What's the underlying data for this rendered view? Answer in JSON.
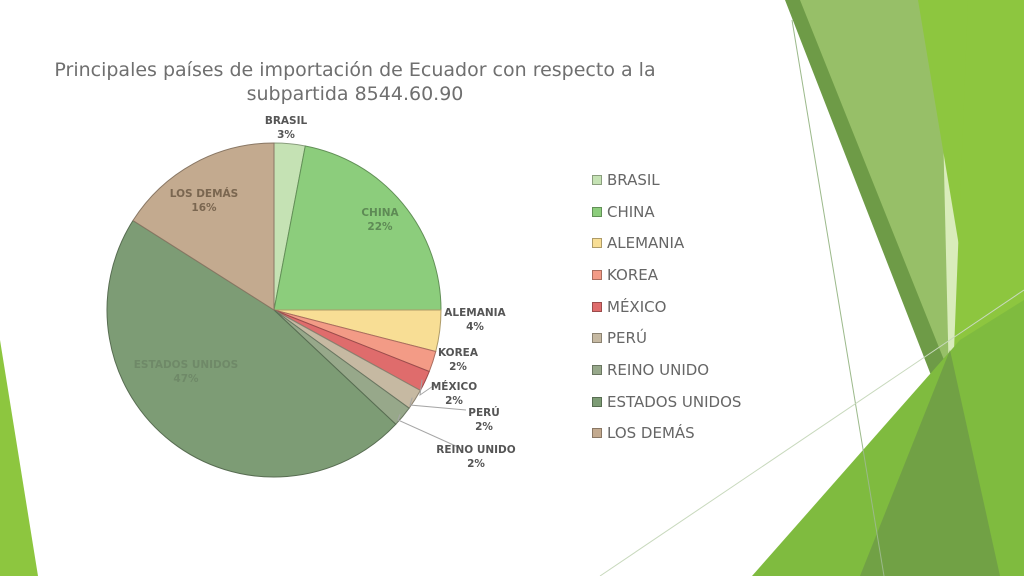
{
  "chart_data": {
    "type": "pie",
    "title": "Principales países de importación de Ecuador con respecto a la subpartida 8544.60.90",
    "categories": [
      "BRASIL",
      "CHINA",
      "ALEMANIA",
      "KOREA",
      "MÉXICO",
      "PERÚ",
      "REINO UNIDO",
      "ESTADOS UNIDOS",
      "LOS DEMÁS"
    ],
    "values": [
      3,
      22,
      4,
      2,
      2,
      2,
      2,
      47,
      16
    ],
    "value_labels": [
      "3%",
      "22%",
      "4%",
      "2%",
      "2%",
      "2%",
      "2%",
      "47%",
      "16%"
    ],
    "colors": [
      "#c5e2b4",
      "#8ccd7c",
      "#f8de95",
      "#f39b86",
      "#df6c6c",
      "#c6b9a2",
      "#97a88a",
      "#7d9c75",
      "#c3aa8f"
    ],
    "legend_position": "right"
  },
  "decor": {
    "accent_colors": [
      "#8dc63f",
      "#6e9b47",
      "#b9dd83"
    ]
  }
}
